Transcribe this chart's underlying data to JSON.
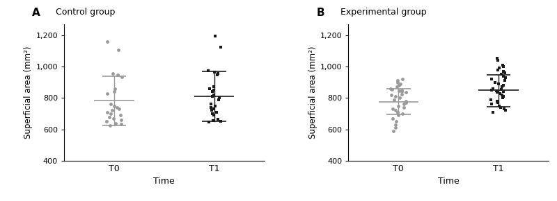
{
  "panel_A_title": "Control group",
  "panel_B_title": "Experimental group",
  "panel_A_label": "A",
  "panel_B_label": "B",
  "ylabel": "Superficial area (mm²)",
  "xlabel": "Time",
  "xtick_labels": [
    "T0",
    "T1"
  ],
  "ylim": [
    400,
    1270
  ],
  "yticks": [
    400,
    600,
    800,
    1000,
    1200
  ],
  "ytick_labels": [
    "400",
    "600",
    "800",
    "1,000",
    "1,200"
  ],
  "ctrl_T0_points": [
    1160,
    1105,
    955,
    945,
    935,
    860,
    840,
    830,
    760,
    750,
    740,
    730,
    720,
    710,
    700,
    690,
    680,
    670,
    660,
    650,
    640,
    635,
    625
  ],
  "ctrl_T0_mean": 785,
  "ctrl_T0_upper": 940,
  "ctrl_T0_lower": 625,
  "ctrl_T1_points": [
    1195,
    1125,
    975,
    965,
    955,
    945,
    870,
    860,
    850,
    840,
    820,
    810,
    800,
    790,
    760,
    750,
    740,
    730,
    720,
    710,
    700,
    690,
    665,
    655,
    650,
    645
  ],
  "ctrl_T1_mean": 810,
  "ctrl_T1_upper": 970,
  "ctrl_T1_lower": 650,
  "exp_T0_points": [
    920,
    910,
    900,
    890,
    880,
    870,
    860,
    855,
    850,
    845,
    840,
    835,
    825,
    820,
    810,
    800,
    790,
    780,
    770,
    760,
    750,
    740,
    730,
    720,
    710,
    700,
    690,
    670,
    650,
    630,
    610,
    590
  ],
  "exp_T0_mean": 775,
  "exp_T0_upper": 860,
  "exp_T0_lower": 695,
  "exp_T1_points": [
    1055,
    1040,
    1010,
    1000,
    990,
    980,
    970,
    960,
    950,
    940,
    930,
    920,
    910,
    900,
    890,
    880,
    870,
    860,
    855,
    850,
    845,
    840,
    835,
    830,
    820,
    810,
    800,
    790,
    780,
    770,
    760,
    750,
    740,
    730,
    720,
    710
  ],
  "exp_T1_mean": 848,
  "exp_T1_upper": 945,
  "exp_T1_lower": 745,
  "dot_color_gray": "#999999",
  "dot_color_black": "#1a1a1a",
  "dot_size_circle": 12,
  "dot_size_square": 12,
  "errorbar_lw": 1.0,
  "mean_lw": 1.2,
  "cap_halfwidth": 0.12,
  "mean_halfwidth": 0.2
}
